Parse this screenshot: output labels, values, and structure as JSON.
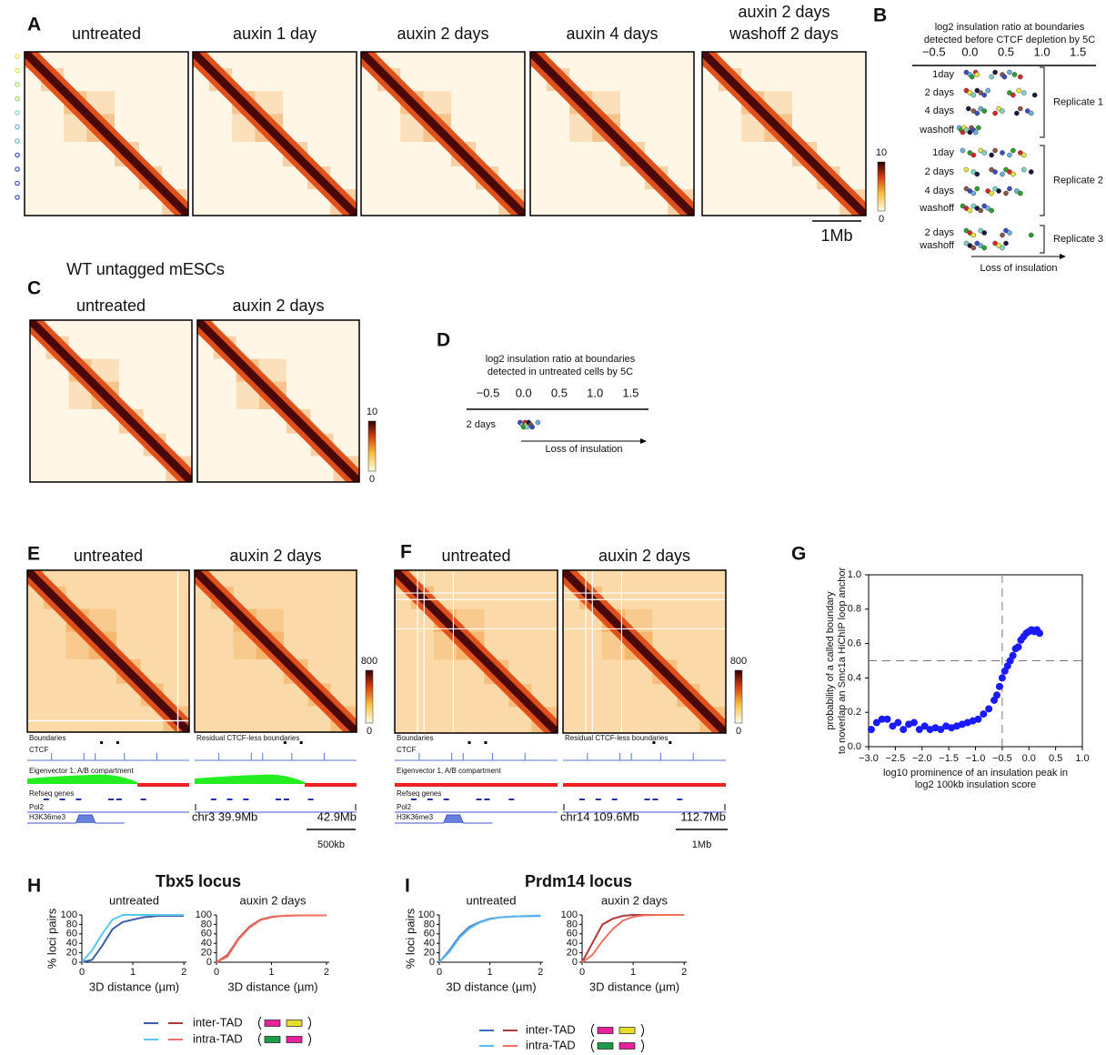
{
  "chart_data": [
    {
      "type": "heatmap",
      "label": "A",
      "titles": [
        [
          "untreated"
        ],
        [
          "auxin 1 day"
        ],
        [
          "auxin 2 days"
        ],
        [
          "auxin 4 days"
        ],
        [
          "auxin 2 days",
          "washoff 2 days"
        ]
      ],
      "clim": [
        0,
        10
      ],
      "cticks": [
        0,
        10
      ],
      "scale_bar": "1Mb"
    },
    {
      "type": "strip",
      "label": "B",
      "title": [
        "log2 insulation ratio at boundaries",
        "detected before CTCF depletion by 5C"
      ],
      "xlim": [
        -0.8,
        1.75
      ],
      "xticks": [
        {
          "value": -0.5,
          "label": "−0.5"
        },
        {
          "value": 0,
          "label": "0.0"
        },
        0.5,
        {
          "value": 1,
          "label": "1.0"
        },
        1.5
      ],
      "groups": [
        {
          "name": "Replicate 1",
          "rows": [
            {
              "name": "1day",
              "values": [
                -0.05,
                0.0,
                0.03,
                0.08,
                0.1,
                0.3,
                0.35,
                0.45,
                0.48,
                0.55,
                0.62,
                0.7
              ]
            },
            {
              "name": "2 days",
              "values": [
                -0.05,
                0.0,
                0.05,
                0.1,
                0.15,
                0.2,
                0.25,
                0.55,
                0.6,
                0.68,
                0.75,
                0.9
              ]
            },
            {
              "name": "4 days",
              "values": [
                -0.02,
                0.05,
                0.1,
                0.15,
                0.2,
                0.35,
                0.4,
                0.45,
                0.65,
                0.7,
                0.8,
                0.85
              ]
            },
            {
              "name": "washoff",
              "values": [
                -0.15,
                -0.12,
                -0.1,
                -0.08,
                -0.05,
                0.0,
                0.02,
                0.05,
                0.08,
                0.12
              ]
            }
          ]
        },
        {
          "name": "Replicate 2",
          "rows": [
            {
              "name": "1day",
              "values": [
                -0.1,
                0.0,
                0.05,
                0.15,
                0.2,
                0.3,
                0.35,
                0.45,
                0.55,
                0.6,
                0.7,
                0.75
              ]
            },
            {
              "name": "2 days",
              "values": [
                -0.05,
                0.05,
                0.1,
                0.3,
                0.35,
                0.45,
                0.5,
                0.55,
                0.6,
                0.75,
                0.85
              ]
            },
            {
              "name": "4 days",
              "values": [
                -0.05,
                0.0,
                0.05,
                0.1,
                0.25,
                0.3,
                0.35,
                0.4,
                0.5,
                0.55,
                0.65,
                0.7
              ]
            },
            {
              "name": "washoff",
              "values": [
                -0.1,
                -0.05,
                0.0,
                0.05,
                0.1,
                0.15,
                0.2,
                0.25,
                0.3
              ]
            }
          ]
        },
        {
          "name": "Replicate 3",
          "rows": [
            {
              "name": "2 days",
              "values": [
                -0.05,
                0.0,
                0.05,
                0.15,
                0.2,
                0.45,
                0.5,
                0.55,
                0.85
              ]
            },
            {
              "name": "washoff",
              "values": [
                -0.05,
                0.0,
                0.05,
                0.1,
                0.15,
                0.2,
                0.35,
                0.4,
                0.45,
                0.5
              ]
            }
          ]
        }
      ],
      "arrow_label": "Loss of insulation",
      "point_colors": [
        "#3b4cc0",
        "#6baed6",
        "#2ca02c",
        "#d62728",
        "#e5e540",
        "#7fd3c8",
        "#1a1a40",
        "#8c564b"
      ]
    },
    {
      "type": "heatmap",
      "label": "C",
      "title": "WT untagged mESCs",
      "titles": [
        [
          "untreated"
        ],
        [
          "auxin 2 days"
        ]
      ],
      "clim": [
        0,
        10
      ],
      "cticks": [
        0,
        10
      ]
    },
    {
      "type": "strip",
      "label": "D",
      "title": [
        "log2 insulation ratio at boundaries",
        "detected in untreated cells by 5C"
      ],
      "xlim": [
        -0.8,
        1.75
      ],
      "xticks": [
        {
          "value": -0.5,
          "label": "−0.5"
        },
        {
          "value": 0,
          "label": "0.0"
        },
        0.5,
        {
          "value": 1,
          "label": "1.0"
        },
        1.5
      ],
      "groups": [
        {
          "rows": [
            {
              "name": "2 days",
              "values": [
                -0.05,
                -0.02,
                0.0,
                0.02,
                0.04,
                0.05,
                0.07,
                0.1,
                0.12,
                0.2
              ]
            }
          ]
        }
      ],
      "arrow_label": "Loss of insulation",
      "point_colors": [
        "#3b4cc0",
        "#6baed6",
        "#2ca02c",
        "#d62728",
        "#e5e540",
        "#7fd3c8",
        "#1a1a40",
        "#8c564b"
      ]
    },
    {
      "type": "heatmap",
      "label": "E",
      "titles": [
        [
          "untreated"
        ],
        [
          "auxin 2 days"
        ]
      ],
      "clim": [
        0,
        800
      ],
      "cticks": [
        0,
        800
      ],
      "tracks_left": [
        "Boundaries",
        "CTCF",
        "Eigenvector 1, A/B compartment",
        "Refseq genes",
        "Pol2",
        "H3K36me3"
      ],
      "tracks_right": [
        "Residual CTCF-less boundaries"
      ],
      "coords": [
        "chr3 39.9Mb",
        "42.9Mb"
      ],
      "scale_bar": "500kb"
    },
    {
      "type": "heatmap",
      "label": "F",
      "titles": [
        [
          "untreated"
        ],
        [
          "auxin 2 days"
        ]
      ],
      "clim": [
        0,
        800
      ],
      "cticks": [
        0,
        800
      ],
      "tracks_left": [
        "Boundaries",
        "CTCF",
        "Eigenvector 1, A/B compartment",
        "Refseq genes",
        "Pol2",
        "H3K36me3"
      ],
      "tracks_right": [
        "Residual CTCF-less boundaries"
      ],
      "coords": [
        "chr14 109.6Mb",
        "112.7Mb"
      ],
      "scale_bar": "1Mb"
    },
    {
      "type": "scatter",
      "label": "G",
      "ylabel": [
        "probability of a called boundary",
        "to noverlap an Smc1a HiChIP loop anchor"
      ],
      "xlabel": [
        "log10 prominence of an insulation peak in",
        "log2 100kb insulation score"
      ],
      "xlim": [
        -3,
        1
      ],
      "ylim": [
        0,
        1
      ],
      "xticks": [
        {
          "value": -3,
          "label": "−3.0"
        },
        {
          "value": -2.5,
          "label": "−2.5"
        },
        {
          "value": -2,
          "label": "−2.0"
        },
        {
          "value": -1.5,
          "label": "−1.5"
        },
        {
          "value": -1,
          "label": "−1.0"
        },
        {
          "value": -0.5,
          "label": "−0.5"
        },
        {
          "value": 0,
          "label": "0.0"
        },
        0.5,
        {
          "value": 1,
          "label": "1.0"
        }
      ],
      "yticks": [
        {
          "value": 0,
          "label": "0.0"
        },
        0.2,
        0.4,
        0.6,
        0.8,
        {
          "value": 1,
          "label": "1.0"
        }
      ],
      "hline": 0.5,
      "vline": -0.5,
      "color": "#1a1aff",
      "x": [
        -2.95,
        -2.85,
        -2.75,
        -2.65,
        -2.55,
        -2.45,
        -2.35,
        -2.25,
        -2.15,
        -2.05,
        -1.95,
        -1.85,
        -1.75,
        -1.65,
        -1.55,
        -1.45,
        -1.35,
        -1.25,
        -1.15,
        -1.05,
        -0.95,
        -0.85,
        -0.75,
        -0.65,
        -0.6,
        -0.55,
        -0.5,
        -0.45,
        -0.4,
        -0.35,
        -0.3,
        -0.25,
        -0.2,
        -0.15,
        -0.1,
        -0.05,
        0.0,
        0.05,
        0.1,
        0.15,
        0.2
      ],
      "values": [
        0.1,
        0.14,
        0.16,
        0.16,
        0.12,
        0.14,
        0.1,
        0.13,
        0.14,
        0.1,
        0.12,
        0.1,
        0.11,
        0.1,
        0.12,
        0.11,
        0.12,
        0.13,
        0.14,
        0.15,
        0.16,
        0.19,
        0.22,
        0.27,
        0.3,
        0.35,
        0.4,
        0.44,
        0.47,
        0.5,
        0.53,
        0.57,
        0.58,
        0.62,
        0.64,
        0.66,
        0.67,
        0.68,
        0.67,
        0.68,
        0.66
      ]
    },
    {
      "type": "line_pair",
      "label": "H",
      "title": "Tbx5 locus",
      "ylabel": "% loci pairs",
      "xlabel": "3D distance (µm)",
      "xlim": [
        0,
        2.05
      ],
      "xticks": [
        0,
        1,
        2
      ],
      "ylim": [
        0,
        100
      ],
      "yticks": [
        0,
        20,
        40,
        60,
        80,
        100
      ],
      "panels": [
        {
          "title": "untreated",
          "series": [
            {
              "color": "#3a5fa8",
              "x": [
                0,
                0.2,
                0.4,
                0.6,
                0.8,
                1.0,
                1.2,
                1.5,
                2.0
              ],
              "values": [
                0,
                5,
                35,
                70,
                85,
                90,
                95,
                98,
                98
              ]
            },
            {
              "color": "#5bc8f0",
              "x": [
                0,
                0.2,
                0.4,
                0.6,
                0.8,
                1.0,
                1.2,
                1.5,
                2.0
              ],
              "values": [
                0,
                25,
                60,
                90,
                100,
                100,
                100,
                100,
                100
              ]
            }
          ]
        },
        {
          "title": "auxin 2 days",
          "series": [
            {
              "color": "#b03a3a",
              "x": [
                0,
                0.2,
                0.4,
                0.6,
                0.8,
                1.0,
                1.2,
                1.5,
                2.0
              ],
              "values": [
                0,
                15,
                50,
                75,
                90,
                96,
                98,
                99,
                99
              ]
            },
            {
              "color": "#f07060",
              "x": [
                0,
                0.2,
                0.4,
                0.6,
                0.8,
                1.0,
                1.2,
                1.5,
                2.0
              ],
              "values": [
                0,
                12,
                48,
                73,
                89,
                95,
                98,
                99,
                99
              ]
            }
          ]
        }
      ],
      "legend": [
        {
          "name": "inter-TAD",
          "colors": [
            "#3a5fa8",
            "#b03a3a"
          ],
          "swatches": [
            "#e8229a",
            "#e5dd2a"
          ]
        },
        {
          "name": "intra-TAD",
          "colors": [
            "#5bc8f0",
            "#f07060"
          ],
          "swatches": [
            "#1e9a4a",
            "#e8229a"
          ]
        }
      ]
    },
    {
      "type": "line_pair",
      "label": "I",
      "title": "Prdm14 locus",
      "ylabel": "% loci pairs",
      "xlabel": "3D distance (µm)",
      "xlim": [
        0,
        2.05
      ],
      "xticks": [
        0,
        1,
        2
      ],
      "ylim": [
        0,
        100
      ],
      "yticks": [
        0,
        20,
        40,
        60,
        80,
        100
      ],
      "panels": [
        {
          "title": "untreated",
          "series": [
            {
              "color": "#3a6fc0",
              "x": [
                0,
                0.2,
                0.4,
                0.6,
                0.8,
                1.0,
                1.2,
                1.5,
                2.0
              ],
              "values": [
                0,
                25,
                55,
                75,
                85,
                92,
                95,
                97,
                98
              ]
            },
            {
              "color": "#5bb8f0",
              "x": [
                0,
                0.2,
                0.4,
                0.6,
                0.8,
                1.0,
                1.2,
                1.5,
                2.0
              ],
              "values": [
                0,
                22,
                52,
                72,
                84,
                91,
                95,
                97,
                99
              ]
            }
          ]
        },
        {
          "title": "auxin 2 days",
          "series": [
            {
              "color": "#b03a3a",
              "x": [
                0,
                0.2,
                0.4,
                0.6,
                0.8,
                1.0,
                1.2,
                1.5,
                2.0
              ],
              "values": [
                0,
                40,
                80,
                92,
                98,
                100,
                100,
                100,
                100
              ]
            },
            {
              "color": "#f07060",
              "x": [
                0,
                0.2,
                0.4,
                0.6,
                0.8,
                1.0,
                1.2,
                1.5,
                2.0
              ],
              "values": [
                0,
                15,
                45,
                70,
                88,
                96,
                99,
                100,
                100
              ]
            }
          ]
        }
      ],
      "legend": [
        {
          "name": "inter-TAD",
          "colors": [
            "#3a6fc0",
            "#b03a3a"
          ],
          "swatches": [
            "#e8229a",
            "#e5dd2a"
          ]
        },
        {
          "name": "intra-TAD",
          "colors": [
            "#5bb8f0",
            "#f07060"
          ],
          "swatches": [
            "#1e9a4a",
            "#e8229a"
          ]
        }
      ]
    }
  ]
}
